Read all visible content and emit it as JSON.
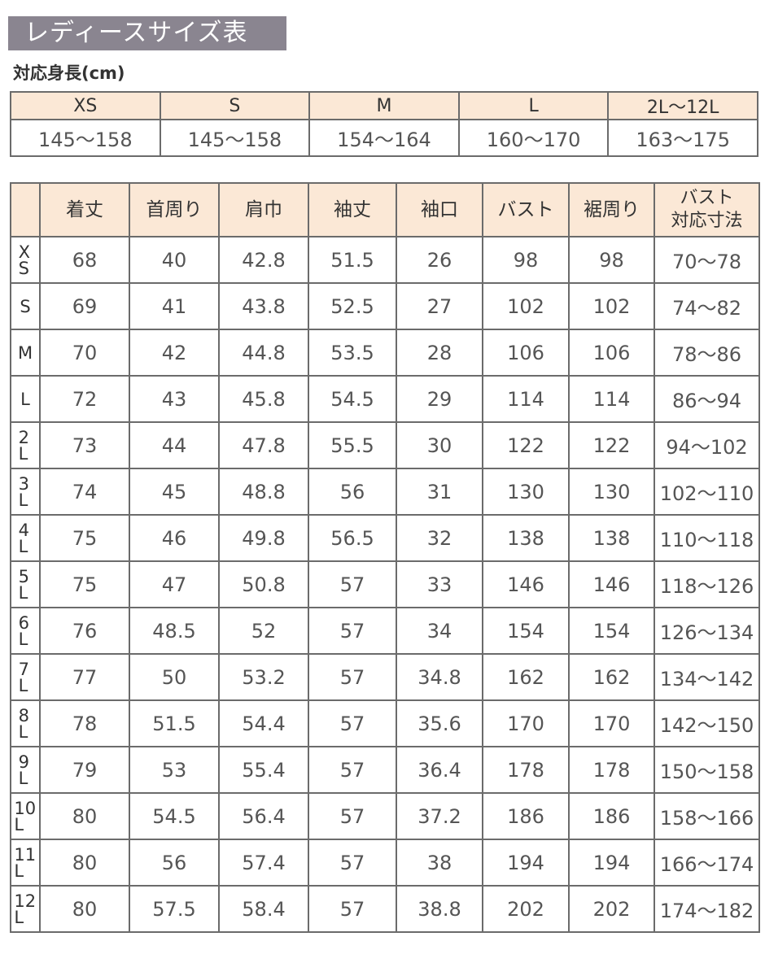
{
  "title": "レディースサイズ表",
  "height_section": {
    "label": "対応身長(cm)",
    "sizes": [
      "XS",
      "S",
      "M",
      "L",
      "2L〜12L"
    ],
    "heights": [
      "145〜158",
      "145〜158",
      "154〜164",
      "160〜170",
      "163〜175"
    ]
  },
  "size_table": {
    "columns": [
      "着丈",
      "首周り",
      "肩巾",
      "袖丈",
      "袖口",
      "バスト",
      "裾周り",
      "バスト\n対応寸法"
    ],
    "rows": [
      {
        "size": "XS",
        "values": [
          "68",
          "40",
          "42.8",
          "51.5",
          "26",
          "98",
          "98",
          "70〜78"
        ]
      },
      {
        "size": "S",
        "values": [
          "69",
          "41",
          "43.8",
          "52.5",
          "27",
          "102",
          "102",
          "74〜82"
        ]
      },
      {
        "size": "M",
        "values": [
          "70",
          "42",
          "44.8",
          "53.5",
          "28",
          "106",
          "106",
          "78〜86"
        ]
      },
      {
        "size": "L",
        "values": [
          "72",
          "43",
          "45.8",
          "54.5",
          "29",
          "114",
          "114",
          "86〜94"
        ]
      },
      {
        "size": "2L",
        "values": [
          "73",
          "44",
          "47.8",
          "55.5",
          "30",
          "122",
          "122",
          "94〜102"
        ]
      },
      {
        "size": "3L",
        "values": [
          "74",
          "45",
          "48.8",
          "56",
          "31",
          "130",
          "130",
          "102〜110"
        ]
      },
      {
        "size": "4L",
        "values": [
          "75",
          "46",
          "49.8",
          "56.5",
          "32",
          "138",
          "138",
          "110〜118"
        ]
      },
      {
        "size": "5L",
        "values": [
          "75",
          "47",
          "50.8",
          "57",
          "33",
          "146",
          "146",
          "118〜126"
        ]
      },
      {
        "size": "6L",
        "values": [
          "76",
          "48.5",
          "52",
          "57",
          "34",
          "154",
          "154",
          "126〜134"
        ]
      },
      {
        "size": "7L",
        "values": [
          "77",
          "50",
          "53.2",
          "57",
          "34.8",
          "162",
          "162",
          "134〜142"
        ]
      },
      {
        "size": "8L",
        "values": [
          "78",
          "51.5",
          "54.4",
          "57",
          "35.6",
          "170",
          "170",
          "142〜150"
        ]
      },
      {
        "size": "9L",
        "values": [
          "79",
          "53",
          "55.4",
          "57",
          "36.4",
          "178",
          "178",
          "150〜158"
        ]
      },
      {
        "size": "10L",
        "values": [
          "80",
          "54.5",
          "56.4",
          "57",
          "37.2",
          "186",
          "186",
          "158〜166"
        ]
      },
      {
        "size": "11L",
        "values": [
          "80",
          "56",
          "57.4",
          "57",
          "38",
          "194",
          "194",
          "166〜174"
        ]
      },
      {
        "size": "12L",
        "values": [
          "80",
          "57.5",
          "58.4",
          "57",
          "38.8",
          "202",
          "202",
          "174〜182"
        ]
      }
    ]
  },
  "colors": {
    "title_bg": "#8a8590",
    "header_bg": "#fbe8d6",
    "border": "#6b6b6b"
  }
}
